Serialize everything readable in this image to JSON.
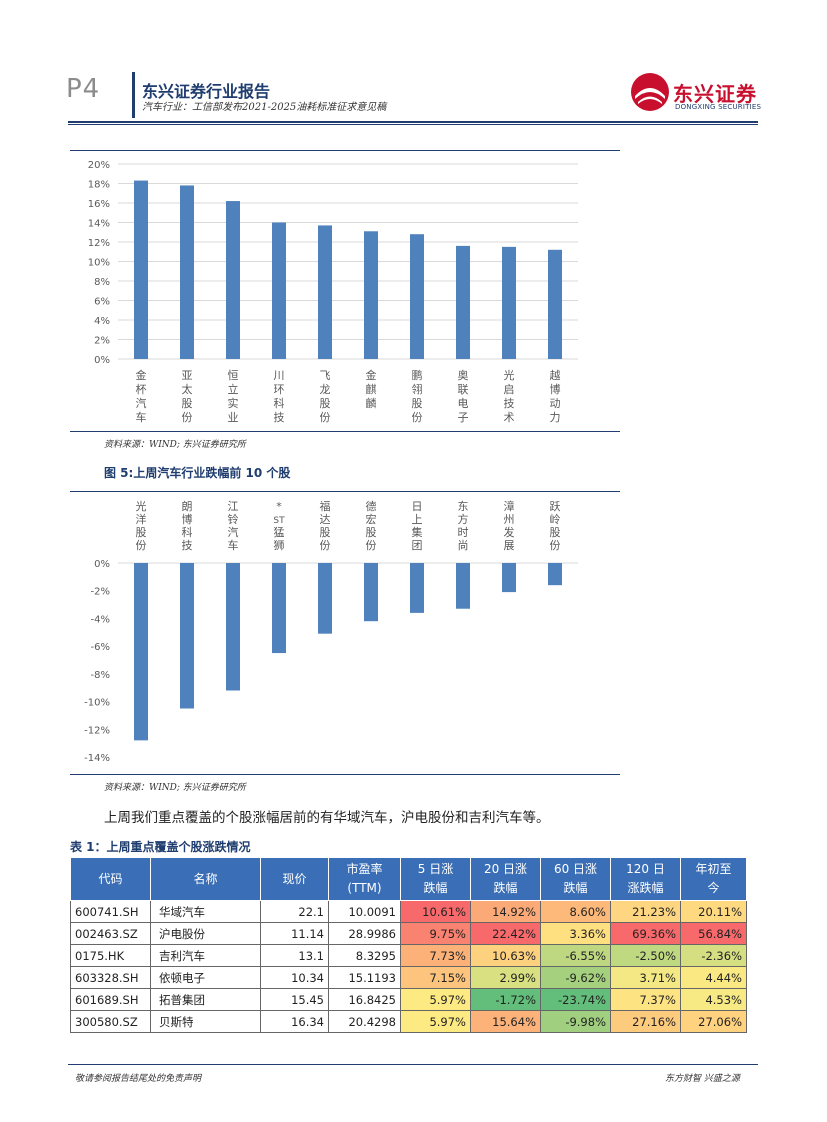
{
  "header": {
    "page_number": "P4",
    "report_title": "东兴证券行业报告",
    "subtitle": "汽车行业：工信部发布2021-2025油耗标准征求意见稿",
    "logo_text": "东兴证券",
    "logo_sub": "DONGXING SECURITIES"
  },
  "chart1": {
    "source": "资料来源：WIND; 东兴证券研究所"
  },
  "figure5": {
    "title": "图 5:上周汽车行业跌幅前 10 个股",
    "source": "资料来源：WIND; 东兴证券研究所"
  },
  "paragraph": "上周我们重点覆盖的个股涨幅居前的有华域汽车，沪电股份和吉利汽车等。",
  "table1": {
    "title": "表 1：上周重点覆盖个股涨跌情况",
    "headers": [
      "代码",
      "名称",
      "现价",
      "市盈率(TTM)",
      "5日涨跌幅",
      "20日涨跌幅",
      "60日涨跌幅",
      "120日涨跌幅",
      "年初至今"
    ],
    "header_lines": [
      [
        "代码"
      ],
      [
        "名称"
      ],
      [
        "现价"
      ],
      [
        "市盈率",
        "(TTM)"
      ],
      [
        "5 日涨",
        "跌幅"
      ],
      [
        "20 日涨",
        "跌幅"
      ],
      [
        "60 日涨",
        "跌幅"
      ],
      [
        "120 日",
        "涨跌幅"
      ],
      [
        "年初至",
        "今"
      ]
    ],
    "rows": [
      [
        "600741.SH",
        "华域汽车",
        "22.1",
        "10.0091",
        "10.61%",
        "14.92%",
        "8.60%",
        "21.23%",
        "20.11%"
      ],
      [
        "002463.SZ",
        "沪电股份",
        "11.14",
        "28.9986",
        "9.75%",
        "22.42%",
        "3.36%",
        "69.36%",
        "56.84%"
      ],
      [
        "0175.HK",
        "吉利汽车",
        "13.1",
        "8.3295",
        "7.73%",
        "10.63%",
        "-6.55%",
        "-2.50%",
        "-2.36%"
      ],
      [
        "603328.SH",
        "依顿电子",
        "10.34",
        "15.1193",
        "7.15%",
        "2.99%",
        "-9.62%",
        "3.71%",
        "4.44%"
      ],
      [
        "601689.SH",
        "拓普集团",
        "15.45",
        "16.8425",
        "5.97%",
        "-1.72%",
        "-23.74%",
        "7.37%",
        "4.53%"
      ],
      [
        "300580.SZ",
        "贝斯特",
        "16.34",
        "20.4298",
        "5.97%",
        "15.64%",
        "-9.98%",
        "27.16%",
        "27.06%"
      ]
    ],
    "cell_colors": [
      [
        "#f8696b",
        "#fbaa77",
        "#fcb979",
        "#fed580",
        "#fed980"
      ],
      [
        "#f98270",
        "#f8696b",
        "#fee081",
        "#f8696b",
        "#f8696b"
      ],
      [
        "#fcb178",
        "#fed17f",
        "#bdd881",
        "#bfd981",
        "#d5df82"
      ],
      [
        "#fdc47d",
        "#d8e082",
        "#a5d17f",
        "#f3e884",
        "#fae983"
      ],
      [
        "#feea83",
        "#63be7b",
        "#63be7b",
        "#fee383",
        "#f7e984"
      ],
      [
        "#feea83",
        "#fcb279",
        "#a0d07f",
        "#fdcb7e",
        "#fed27f"
      ]
    ]
  },
  "footer": {
    "left": "敬请参阅报告结尾处的免责声明",
    "right": "东方财智 兴盛之源"
  },
  "chart_data": [
    {
      "type": "bar",
      "title": "",
      "categories": [
        "金杯汽车",
        "亚太股份",
        "恒立实业",
        "川环科技",
        "飞龙股份",
        "金麒麟",
        "鹏翎股份",
        "奥联电子",
        "光启技术",
        "越博动力"
      ],
      "values": [
        18.3,
        17.8,
        16.2,
        14.0,
        13.7,
        13.1,
        12.8,
        11.6,
        11.5,
        11.2
      ],
      "ylim": [
        0,
        20
      ],
      "yticks": [
        "0%",
        "2%",
        "4%",
        "6%",
        "8%",
        "10%",
        "12%",
        "14%",
        "16%",
        "18%",
        "20%"
      ],
      "ylabel": "",
      "xlabel": "",
      "grid": true
    },
    {
      "type": "bar",
      "title": "图 5:上周汽车行业跌幅前 10 个股",
      "categories": [
        "光洋股份",
        "朗博科技",
        "江铃汽车",
        "*ST猛狮",
        "福达股份",
        "德宏股份",
        "日上集团",
        "东方时尚",
        "漳州发展",
        "跃岭股份"
      ],
      "values": [
        -12.8,
        -10.5,
        -9.2,
        -6.5,
        -5.1,
        -4.2,
        -3.6,
        -3.3,
        -2.1,
        -1.6
      ],
      "ylim": [
        -14,
        0
      ],
      "yticks": [
        "-14%",
        "-12%",
        "-10%",
        "-8%",
        "-6%",
        "-4%",
        "-2%",
        "0%"
      ],
      "ylabel": "",
      "xlabel": "",
      "grid": false
    }
  ]
}
